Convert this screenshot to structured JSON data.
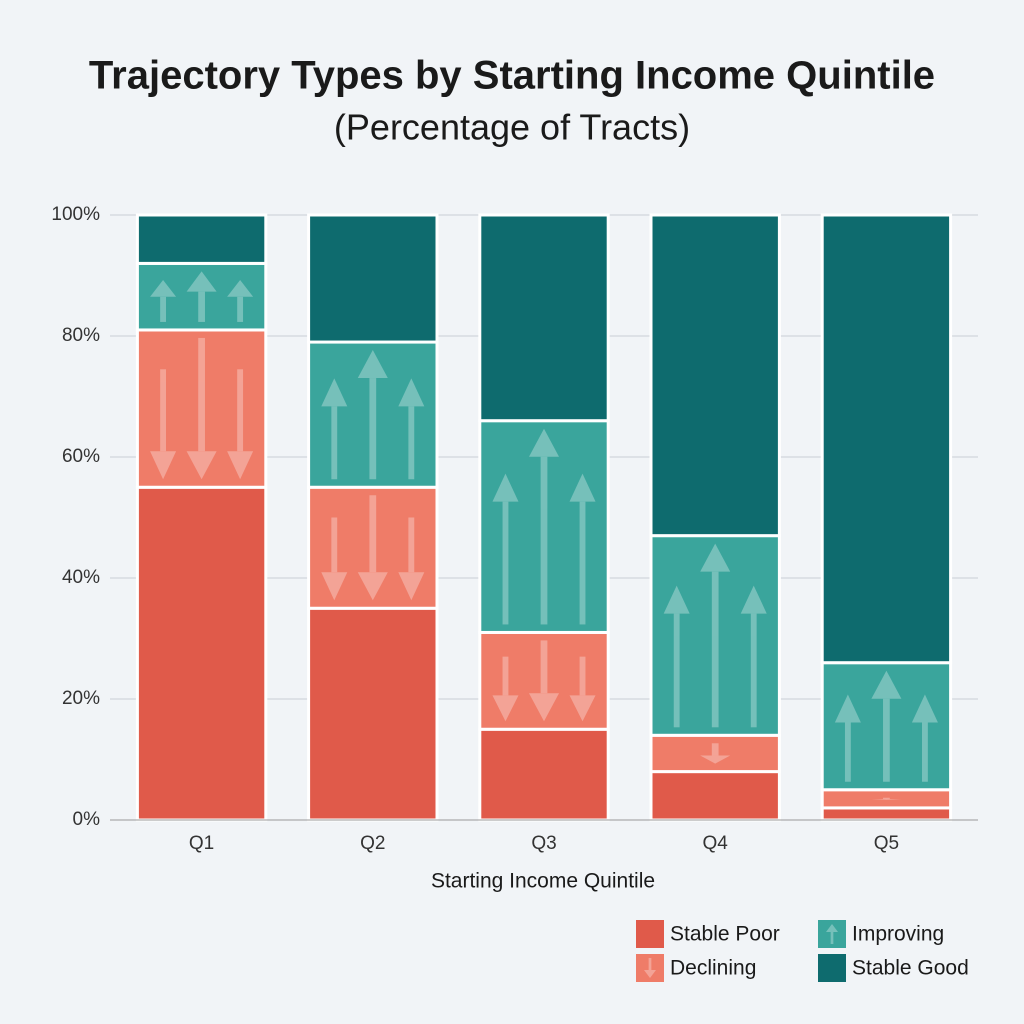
{
  "chart_data": {
    "type": "stacked_bar",
    "title": "Trajectory Types by Starting Income Quintile",
    "subtitle": "(Percentage of Tracts)",
    "x_label": "Starting Income Quintile",
    "categories": [
      "Q1",
      "Q2",
      "Q3",
      "Q4",
      "Q5"
    ],
    "series": [
      {
        "name": "Stable Poor",
        "color": "#e05a4a",
        "values": [
          55,
          35,
          15,
          8,
          2
        ]
      },
      {
        "name": "Declining",
        "color": "#ef7c68",
        "values": [
          26,
          20,
          16,
          6,
          3
        ]
      },
      {
        "name": "Improving",
        "color": "#3aa59c",
        "values": [
          11,
          24,
          35,
          33,
          21
        ]
      },
      {
        "name": "Stable Good",
        "color": "#0e6b6e",
        "values": [
          8,
          21,
          34,
          53,
          74
        ]
      }
    ],
    "ylim": [
      0,
      100
    ],
    "yticks": [
      {
        "value": 0,
        "label": "0%"
      },
      {
        "value": 20,
        "label": "20%"
      },
      {
        "value": 40,
        "label": "40%"
      },
      {
        "value": 60,
        "label": "60%"
      },
      {
        "value": 80,
        "label": "80%"
      },
      {
        "value": 100,
        "label": "100%"
      }
    ],
    "grid": true
  }
}
